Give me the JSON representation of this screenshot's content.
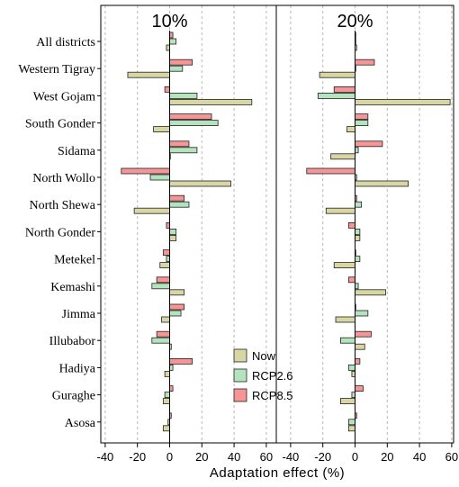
{
  "colors": {
    "Now": "#d8d7a3",
    "RCP2.6": "#b4e4be",
    "RCP8.5": "#f59595",
    "grid": "#b8b8b8",
    "frame": "#000000"
  },
  "chart_data": {
    "type": "bar",
    "orientation": "horizontal",
    "xlabel": "Adaptation effect (%)",
    "ylabel": "",
    "grid": true,
    "legend_position": "bottom-center",
    "categories": [
      "All districts",
      "Western Tigray",
      "West Gojam",
      "South Gonder",
      "Sidama",
      "North Wollo",
      "North Shewa",
      "North Gonder",
      "Metekel",
      "Kemashi",
      "Jimma",
      "Illubabor",
      "Hadiya",
      "Guraghe",
      "Asosa"
    ],
    "panels": [
      {
        "title": "10%",
        "xlim": [
          -42,
          65
        ],
        "xticks": [
          -40,
          -20,
          0,
          20,
          40,
          60
        ],
        "xtick_labels": [
          "-40",
          "-20",
          "0",
          "20",
          "40",
          "60"
        ],
        "series": [
          {
            "name": "RCP8.5",
            "values": [
              2,
              14,
              -3,
              26,
              12,
              -30,
              9,
              -2,
              -4,
              -8,
              9,
              -8,
              14,
              2,
              1
            ]
          },
          {
            "name": "RCP2.6",
            "values": [
              4,
              8,
              17,
              30,
              17,
              -12,
              12,
              4,
              -2,
              -11,
              7,
              -11,
              2,
              -3,
              -1
            ]
          },
          {
            "name": "Now",
            "values": [
              -2,
              -26,
              51,
              -10,
              0,
              38,
              -22,
              4,
              -6,
              9,
              -5,
              1,
              -3,
              -4,
              -4
            ]
          }
        ]
      },
      {
        "title": "20%",
        "xlim": [
          -42,
          65
        ],
        "xticks": [
          -40,
          -20,
          0,
          20,
          40,
          60
        ],
        "xtick_labels": [
          "-40",
          "-20",
          "0",
          "20",
          "40",
          "60"
        ],
        "series": [
          {
            "name": "RCP8.5",
            "values": [
              0,
              12,
              -13,
              8,
              17,
              -30,
              1,
              -4,
              0,
              -4,
              0,
              10,
              3,
              5,
              1
            ]
          },
          {
            "name": "RCP2.6",
            "values": [
              0,
              0,
              -23,
              8,
              2,
              1,
              4,
              3,
              3,
              2,
              8,
              -9,
              -4,
              -2,
              -4
            ]
          },
          {
            "name": "Now",
            "values": [
              1,
              -22,
              59,
              -5,
              -15,
              33,
              -18,
              3,
              -13,
              19,
              -12,
              6,
              -2,
              -9,
              -4
            ]
          }
        ]
      }
    ],
    "legend": [
      "Now",
      "RCP2.6",
      "RCP8.5"
    ]
  }
}
